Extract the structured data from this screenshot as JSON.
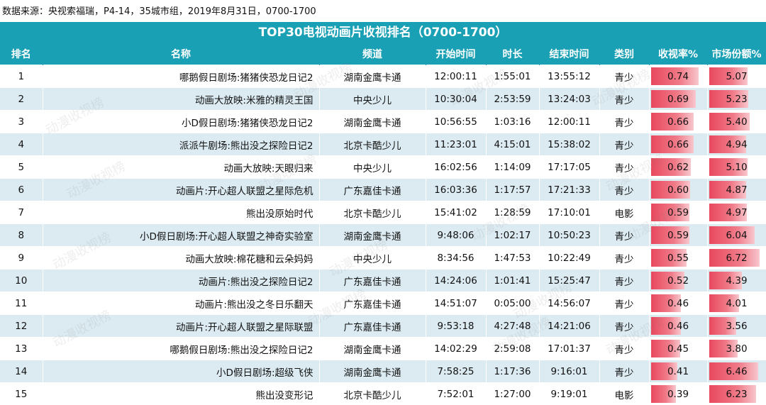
{
  "source": "数据来源：央视索福瑞，P4-14，35城市组，2019年8月31日，0700-1700",
  "title": "TOP30电视动画片收视排名（0700-1700）",
  "watermark": "动漫收视榜",
  "colors": {
    "header_bg": "#1aa0b4",
    "row_alt": "#dcebf2",
    "bar": "#e8485e"
  },
  "columns": [
    "排名",
    "名称",
    "频道",
    "开始时间",
    "时长",
    "结束时间",
    "类别",
    "收视率%",
    "市场份额%"
  ],
  "rows": [
    {
      "rank": "1",
      "name": "哪鹅假日剧场:猪猪侠恐龙日记2",
      "channel": "湖南金鹰卡通",
      "start": "12:00:11",
      "duration": "1:55:01",
      "end": "13:55:12",
      "category": "青少",
      "rating": "0.74",
      "share": "5.07"
    },
    {
      "rank": "2",
      "name": "动画大放映:米雅的精灵王国",
      "channel": "中央少儿",
      "start": "10:30:04",
      "duration": "2:53:59",
      "end": "13:24:03",
      "category": "青少",
      "rating": "0.69",
      "share": "5.23"
    },
    {
      "rank": "3",
      "name": "小D假日剧场:猪猪侠恐龙日记2",
      "channel": "湖南金鹰卡通",
      "start": "10:56:55",
      "duration": "1:03:16",
      "end": "12:00:11",
      "category": "青少",
      "rating": "0.66",
      "share": "5.40"
    },
    {
      "rank": "4",
      "name": "派派牛剧场:熊出没之探险日记2",
      "channel": "北京卡酷少儿",
      "start": "11:23:01",
      "duration": "4:15:01",
      "end": "15:38:02",
      "category": "青少",
      "rating": "0.66",
      "share": "4.94"
    },
    {
      "rank": "5",
      "name": "动画大放映:天眼归来",
      "channel": "中央少儿",
      "start": "16:02:56",
      "duration": "1:14:09",
      "end": "17:17:05",
      "category": "青少",
      "rating": "0.62",
      "share": "5.10"
    },
    {
      "rank": "6",
      "name": "动画片:开心超人联盟之星际危机",
      "channel": "广东嘉佳卡通",
      "start": "16:03:36",
      "duration": "1:17:57",
      "end": "17:21:33",
      "category": "青少",
      "rating": "0.60",
      "share": "4.87"
    },
    {
      "rank": "7",
      "name": "熊出没原始时代",
      "channel": "北京卡酷少儿",
      "start": "15:41:02",
      "duration": "1:28:59",
      "end": "17:10:01",
      "category": "电影",
      "rating": "0.59",
      "share": "4.97"
    },
    {
      "rank": "8",
      "name": "小D假日剧场:开心超人联盟之神奇实验室",
      "channel": "湖南金鹰卡通",
      "start": "9:48:06",
      "duration": "1:02:17",
      "end": "10:50:23",
      "category": "青少",
      "rating": "0.59",
      "share": "6.04"
    },
    {
      "rank": "9",
      "name": "动画大放映:棉花糖和云朵妈妈",
      "channel": "中央少儿",
      "start": "8:34:56",
      "duration": "1:47:53",
      "end": "10:22:49",
      "category": "青少",
      "rating": "0.55",
      "share": "6.72"
    },
    {
      "rank": "10",
      "name": "动画片:熊出没之探险日记2",
      "channel": "广东嘉佳卡通",
      "start": "14:24:06",
      "duration": "1:01:41",
      "end": "15:25:47",
      "category": "青少",
      "rating": "0.52",
      "share": "4.39"
    },
    {
      "rank": "11",
      "name": "动画片:熊出没之冬日乐翻天",
      "channel": "广东嘉佳卡通",
      "start": "14:51:07",
      "duration": "0:05:00",
      "end": "14:56:07",
      "category": "青少",
      "rating": "0.46",
      "share": "4.01"
    },
    {
      "rank": "12",
      "name": "动画片:开心超人联盟之星际联盟",
      "channel": "广东嘉佳卡通",
      "start": "9:53:18",
      "duration": "4:27:48",
      "end": "14:21:06",
      "category": "青少",
      "rating": "0.46",
      "share": "3.56"
    },
    {
      "rank": "13",
      "name": "哪鹅假日剧场:熊出没之探险日记2",
      "channel": "湖南金鹰卡通",
      "start": "14:02:29",
      "duration": "2:59:08",
      "end": "17:01:37",
      "category": "青少",
      "rating": "0.45",
      "share": "3.80"
    },
    {
      "rank": "14",
      "name": "小D假日剧场:超级飞侠",
      "channel": "湖南金鹰卡通",
      "start": "7:58:25",
      "duration": "1:17:36",
      "end": "9:16:01",
      "category": "青少",
      "rating": "0.41",
      "share": "6.46"
    },
    {
      "rank": "15",
      "name": "熊出没变形记",
      "channel": "北京卡酷少儿",
      "start": "7:52:01",
      "duration": "1:27:00",
      "end": "9:19:01",
      "category": "电影",
      "rating": "0.39",
      "share": "6.23"
    }
  ],
  "bar_scale": {
    "rating_max": 0.85,
    "share_max": 7.3
  }
}
